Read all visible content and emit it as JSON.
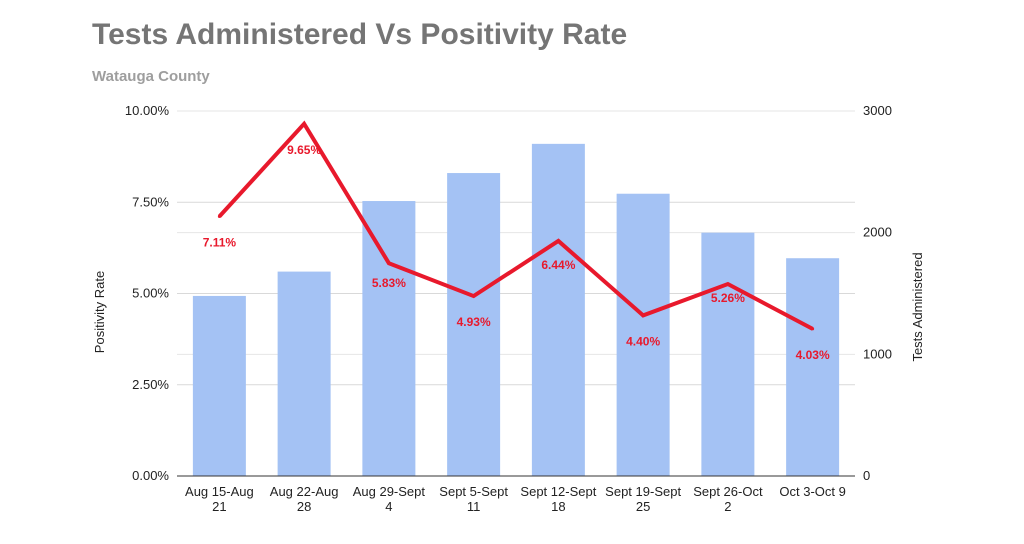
{
  "chart_data": {
    "type": "bar",
    "title": "Tests Administered Vs Positivity Rate",
    "subtitle": "Watauga County",
    "categories": [
      [
        "Aug 15-Aug",
        "21"
      ],
      [
        "Aug 22-Aug",
        "28"
      ],
      [
        "Aug 29-Sept",
        "4"
      ],
      [
        "Sept 5-Sept",
        "11"
      ],
      [
        "Sept 12-Sept",
        "18"
      ],
      [
        "Sept 19-Sept",
        "25"
      ],
      [
        "Sept 26-Oct",
        "2"
      ],
      [
        "Oct 3-Oct 9"
      ]
    ],
    "series": [
      {
        "type": "bar",
        "axis": "right",
        "values": [
          1480,
          1680,
          2260,
          2490,
          2730,
          2320,
          2000,
          1790
        ],
        "color": "#a4c2f4"
      },
      {
        "type": "line",
        "axis": "left",
        "values": [
          7.11,
          9.65,
          5.83,
          4.93,
          6.44,
          4.4,
          5.26,
          4.03
        ],
        "labels": [
          "7.11%",
          "9.65%",
          "5.83%",
          "4.93%",
          "6.44%",
          "4.40%",
          "5.26%",
          "4.03%"
        ],
        "color": "#e8192c"
      }
    ],
    "left_axis": {
      "label": "Positivity Rate",
      "ylim": [
        0,
        10
      ],
      "ticks": [
        0,
        2.5,
        5,
        7.5,
        10
      ],
      "tick_labels": [
        "0.00%",
        "2.50%",
        "5.00%",
        "7.50%",
        "10.00%"
      ]
    },
    "right_axis": {
      "label": "Tests Administered",
      "ylim": [
        0,
        3000
      ],
      "ticks": [
        0,
        1000,
        2000,
        3000
      ],
      "tick_labels": [
        "0",
        "1000",
        "2000",
        "3000"
      ]
    },
    "grid": true,
    "legend": "none"
  }
}
